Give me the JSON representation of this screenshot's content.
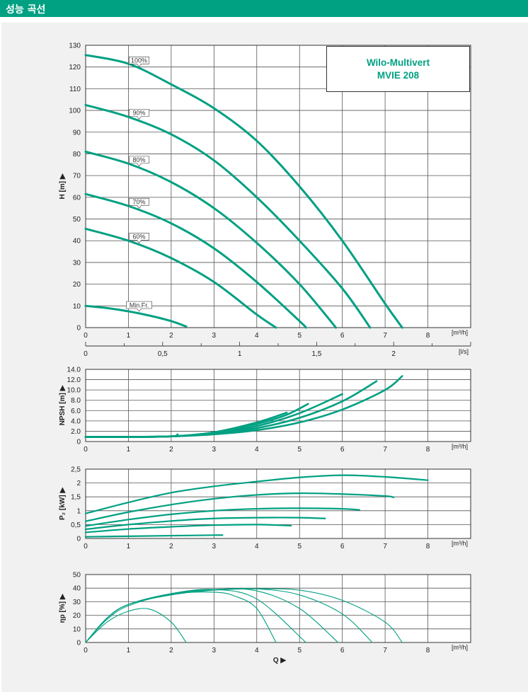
{
  "header": {
    "title": "성능 곡선"
  },
  "brand": {
    "line1": "Wilo-Multivert",
    "line2": "MVIE 208"
  },
  "colors": {
    "accent": "#00a082",
    "grid": "#555555",
    "panel": "#f1f1f1"
  },
  "chart_data": [
    {
      "id": "head",
      "type": "line",
      "ylabel": "H [m] ▶",
      "xunit": "[m³/h]",
      "secondary_x_unit": "[l/s]",
      "xlim": [
        0,
        9
      ],
      "ylim": [
        0,
        130
      ],
      "x_ticks": [
        "0",
        "1",
        "2",
        "3",
        "4",
        "5",
        "6",
        "7",
        "8"
      ],
      "y_ticks": [
        "0",
        "10",
        "20",
        "30",
        "40",
        "50",
        "60",
        "70",
        "80",
        "90",
        "100",
        "110",
        "120",
        "130"
      ],
      "secondary_x_ticks": [
        {
          "value": 0,
          "label": "0"
        },
        {
          "value": 0.5,
          "label": "0,5"
        },
        {
          "value": 1,
          "label": "1"
        },
        {
          "value": 1.5,
          "label": "1,5"
        },
        {
          "value": 2,
          "label": "2"
        }
      ],
      "grid": true,
      "series": [
        {
          "name": "100%",
          "points": [
            [
              0,
              125.5
            ],
            [
              1,
              121.5
            ],
            [
              2,
              112
            ],
            [
              3,
              101
            ],
            [
              4,
              86
            ],
            [
              5,
              65
            ],
            [
              6,
              40
            ],
            [
              7,
              11
            ],
            [
              7.4,
              0
            ]
          ]
        },
        {
          "name": "90%",
          "points": [
            [
              0,
              102.5
            ],
            [
              1,
              97
            ],
            [
              2,
              89
            ],
            [
              3,
              77
            ],
            [
              4,
              60
            ],
            [
              5,
              40
            ],
            [
              6,
              18
            ],
            [
              6.65,
              0
            ]
          ]
        },
        {
          "name": "80%",
          "points": [
            [
              0,
              81
            ],
            [
              1,
              75.5
            ],
            [
              2,
              67
            ],
            [
              3,
              55
            ],
            [
              4,
              39
            ],
            [
              5,
              20
            ],
            [
              5.85,
              0
            ]
          ]
        },
        {
          "name": "70%",
          "points": [
            [
              0,
              61.5
            ],
            [
              1,
              56
            ],
            [
              2,
              48
            ],
            [
              3,
              36.5
            ],
            [
              4,
              21
            ],
            [
              5,
              3
            ],
            [
              5.15,
              0
            ]
          ]
        },
        {
          "name": "60%",
          "points": [
            [
              0,
              45.5
            ],
            [
              1,
              40
            ],
            [
              2,
              32
            ],
            [
              3,
              21
            ],
            [
              4,
              6
            ],
            [
              4.45,
              0
            ]
          ]
        },
        {
          "name": "Min.Fr.",
          "points": [
            [
              0,
              10
            ],
            [
              0.5,
              9
            ],
            [
              1,
              7.5
            ],
            [
              1.5,
              5.5
            ],
            [
              2,
              3
            ],
            [
              2.35,
              0.5
            ]
          ]
        }
      ]
    },
    {
      "id": "npsh",
      "type": "line",
      "ylabel": "NPSH [m] ▶",
      "xunit": "[m³/h]",
      "xlim": [
        0,
        9
      ],
      "ylim": [
        0,
        14
      ],
      "x_ticks": [
        "0",
        "1",
        "2",
        "3",
        "4",
        "5",
        "6",
        "7",
        "8"
      ],
      "y_ticks": [
        "0",
        "2.0",
        "4.0",
        "6.0",
        "8.0",
        "10.0",
        "12.0",
        "14.0"
      ],
      "grid": true,
      "series": [
        {
          "name": "",
          "points": [
            [
              0,
              0.9
            ],
            [
              1,
              0.9
            ],
            [
              2,
              1.0
            ],
            [
              3,
              1.4
            ],
            [
              4,
              2.2
            ],
            [
              5,
              3.7
            ],
            [
              6,
              6.2
            ],
            [
              7,
              10.0
            ],
            [
              7.4,
              12.7
            ]
          ]
        },
        {
          "name": "",
          "points": [
            [
              0,
              0.9
            ],
            [
              1,
              0.9
            ],
            [
              2,
              1.0
            ],
            [
              3,
              1.5
            ],
            [
              4,
              2.6
            ],
            [
              5,
              4.6
            ],
            [
              6,
              7.8
            ],
            [
              6.8,
              11.7
            ]
          ]
        },
        {
          "name": "",
          "points": [
            [
              0,
              0.9
            ],
            [
              1,
              0.9
            ],
            [
              2,
              1.0
            ],
            [
              3,
              1.6
            ],
            [
              4,
              3.0
            ],
            [
              5,
              5.5
            ],
            [
              6,
              9.2
            ]
          ]
        },
        {
          "name": "",
          "points": [
            [
              0,
              0.9
            ],
            [
              1,
              0.9
            ],
            [
              2,
              1.0
            ],
            [
              3,
              1.7
            ],
            [
              4,
              3.4
            ],
            [
              4.7,
              5.2
            ],
            [
              5.2,
              7.3
            ]
          ]
        },
        {
          "name": "",
          "points": [
            [
              0,
              0.9
            ],
            [
              1,
              0.9
            ],
            [
              2,
              1.0
            ],
            [
              3,
              1.8
            ],
            [
              4,
              3.7
            ],
            [
              4.7,
              5.6
            ]
          ]
        },
        {
          "name": "",
          "points": [
            [
              0,
              0.9
            ],
            [
              1,
              0.9
            ],
            [
              2,
              1.0
            ],
            [
              2.15,
              1.4
            ]
          ]
        }
      ]
    },
    {
      "id": "power",
      "type": "line",
      "ylabel": "P₂ [kW] ▶",
      "xunit": "[m³/h]",
      "xlim": [
        0,
        9
      ],
      "ylim": [
        0,
        2.5
      ],
      "x_ticks": [
        "0",
        "1",
        "2",
        "3",
        "4",
        "5",
        "6",
        "7",
        "8"
      ],
      "y_ticks": [
        "0",
        "0,5",
        "1",
        "1,5",
        "2",
        "2,5"
      ],
      "grid": true,
      "series": [
        {
          "name": "",
          "points": [
            [
              0,
              0.9
            ],
            [
              1,
              1.3
            ],
            [
              2,
              1.65
            ],
            [
              3,
              1.88
            ],
            [
              4,
              2.05
            ],
            [
              5,
              2.2
            ],
            [
              6,
              2.28
            ],
            [
              7,
              2.22
            ],
            [
              8,
              2.1
            ]
          ]
        },
        {
          "name": "",
          "points": [
            [
              0,
              0.62
            ],
            [
              1,
              0.95
            ],
            [
              2,
              1.22
            ],
            [
              3,
              1.43
            ],
            [
              4,
              1.57
            ],
            [
              5,
              1.63
            ],
            [
              6,
              1.6
            ],
            [
              7,
              1.53
            ],
            [
              7.2,
              1.48
            ]
          ]
        },
        {
          "name": "",
          "points": [
            [
              0,
              0.45
            ],
            [
              1,
              0.68
            ],
            [
              2,
              0.87
            ],
            [
              3,
              1.0
            ],
            [
              4,
              1.07
            ],
            [
              5,
              1.09
            ],
            [
              6,
              1.07
            ],
            [
              6.4,
              1.03
            ]
          ]
        },
        {
          "name": "",
          "points": [
            [
              0,
              0.33
            ],
            [
              1,
              0.5
            ],
            [
              2,
              0.63
            ],
            [
              3,
              0.72
            ],
            [
              4,
              0.75
            ],
            [
              5,
              0.75
            ],
            [
              5.6,
              0.72
            ]
          ]
        },
        {
          "name": "",
          "points": [
            [
              0,
              0.22
            ],
            [
              1,
              0.34
            ],
            [
              2,
              0.42
            ],
            [
              3,
              0.48
            ],
            [
              4,
              0.5
            ],
            [
              4.5,
              0.48
            ],
            [
              4.8,
              0.46
            ]
          ]
        },
        {
          "name": "",
          "points": [
            [
              0,
              0.06
            ],
            [
              1,
              0.08
            ],
            [
              2,
              0.1
            ],
            [
              3,
              0.12
            ],
            [
              3.2,
              0.12
            ]
          ]
        }
      ]
    },
    {
      "id": "efficiency",
      "type": "line",
      "ylabel": "ηp [%] ▶",
      "xlabel": "Q ▶",
      "xunit": "[m³/h]",
      "xlim": [
        0,
        9
      ],
      "ylim": [
        0,
        50
      ],
      "x_ticks": [
        "0",
        "1",
        "2",
        "3",
        "4",
        "5",
        "6",
        "7",
        "8"
      ],
      "y_ticks": [
        "0",
        "10",
        "20",
        "30",
        "40",
        "50"
      ],
      "grid": true,
      "series": [
        {
          "name": "",
          "points": [
            [
              0,
              0
            ],
            [
              0.5,
              18
            ],
            [
              1,
              28
            ],
            [
              2,
              35
            ],
            [
              3,
              38.5
            ],
            [
              4,
              39.5
            ],
            [
              5,
              38.5
            ],
            [
              6,
              31
            ],
            [
              7,
              15
            ],
            [
              7.4,
              0
            ]
          ]
        },
        {
          "name": "",
          "points": [
            [
              0,
              0
            ],
            [
              0.5,
              18
            ],
            [
              1,
              28
            ],
            [
              2,
              35.5
            ],
            [
              3,
              39
            ],
            [
              4,
              39.5
            ],
            [
              5,
              35
            ],
            [
              6,
              21
            ],
            [
              6.7,
              0
            ]
          ]
        },
        {
          "name": "",
          "points": [
            [
              0,
              0
            ],
            [
              0.5,
              18
            ],
            [
              1,
              28
            ],
            [
              2,
              36
            ],
            [
              3,
              39
            ],
            [
              4,
              38
            ],
            [
              5,
              25
            ],
            [
              5.9,
              0
            ]
          ]
        },
        {
          "name": "",
          "points": [
            [
              0,
              0
            ],
            [
              0.5,
              18
            ],
            [
              1,
              28
            ],
            [
              2,
              36
            ],
            [
              3,
              39
            ],
            [
              4,
              32
            ],
            [
              5.15,
              0
            ]
          ]
        },
        {
          "name": "",
          "points": [
            [
              0,
              0
            ],
            [
              0.5,
              17
            ],
            [
              1,
              27
            ],
            [
              2,
              35.5
            ],
            [
              3,
              37
            ],
            [
              3.5,
              34
            ],
            [
              4,
              25
            ],
            [
              4.45,
              0
            ]
          ]
        },
        {
          "name": "",
          "points": [
            [
              0,
              0
            ],
            [
              0.5,
              15
            ],
            [
              1,
              23
            ],
            [
              1.5,
              24.5
            ],
            [
              2,
              15
            ],
            [
              2.35,
              0
            ]
          ]
        }
      ]
    }
  ]
}
